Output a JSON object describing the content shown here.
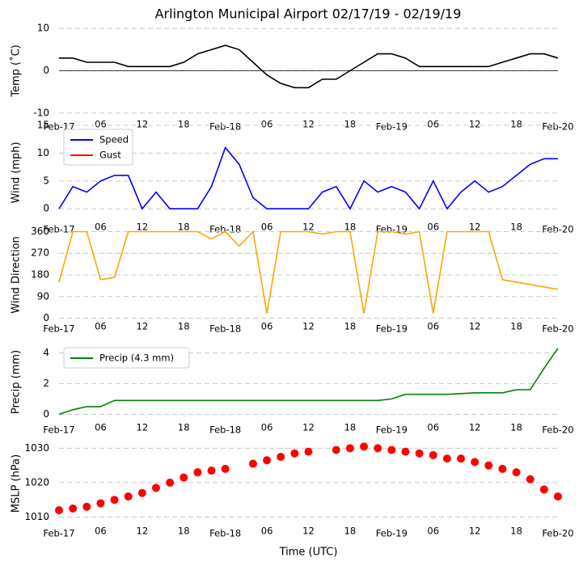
{
  "chart_data": [
    {
      "type": "line",
      "title": "Arlington Municipal Airport 02/17/19 - 02/19/19",
      "ylabel": "Temp (˚C)",
      "color": "#000000",
      "hline": 0,
      "x": [
        0,
        2,
        4,
        6,
        8,
        10,
        12,
        14,
        16,
        18,
        20,
        22,
        24,
        26,
        28,
        30,
        32,
        34,
        36,
        38,
        40,
        42,
        44,
        46,
        48,
        50,
        52,
        54,
        56,
        58,
        60,
        62,
        64,
        66,
        68,
        70,
        72
      ],
      "values": [
        3,
        3,
        2,
        2,
        2,
        1,
        1,
        1,
        1,
        2,
        4,
        5,
        6,
        5,
        2,
        -1,
        -3,
        -4,
        -4,
        -2,
        -2,
        0,
        2,
        4,
        4,
        3,
        1,
        1,
        1,
        1,
        1,
        1,
        2,
        3,
        4,
        4,
        3
      ],
      "xlim": [
        0,
        72
      ],
      "ylim": [
        -11,
        11
      ],
      "yticks": [
        -10,
        0,
        10
      ],
      "xticks": [
        {
          "value": 0,
          "label": "Feb-17"
        },
        {
          "value": 6,
          "label": "06"
        },
        12,
        18,
        {
          "value": 24,
          "label": "Feb-18"
        },
        {
          "value": 30,
          "label": "06"
        },
        {
          "value": 36,
          "label": "12"
        },
        {
          "value": 42,
          "label": "18"
        },
        {
          "value": 48,
          "label": "Feb-19"
        },
        {
          "value": 54,
          "label": "06"
        },
        {
          "value": 60,
          "label": "12"
        },
        {
          "value": 66,
          "label": "18"
        },
        {
          "value": 72,
          "label": "Feb-20"
        }
      ],
      "grid": true
    },
    {
      "type": "line",
      "ylabel": "Wind (mph)",
      "legend": "upper left",
      "x": [
        0,
        2,
        4,
        6,
        8,
        10,
        12,
        14,
        16,
        18,
        20,
        22,
        24,
        26,
        28,
        30,
        32,
        34,
        36,
        38,
        40,
        42,
        44,
        46,
        48,
        50,
        52,
        54,
        56,
        58,
        60,
        62,
        64,
        66,
        68,
        70,
        72
      ],
      "series": [
        {
          "name": "Speed",
          "color": "#0000ff",
          "values": [
            0,
            4,
            3,
            5,
            6,
            6,
            0,
            3,
            0,
            0,
            0,
            4,
            11,
            8,
            2,
            0,
            0,
            0,
            0,
            3,
            4,
            0,
            5,
            3,
            4,
            3,
            0,
            5,
            0,
            3,
            5,
            3,
            4,
            6,
            8,
            9,
            9
          ]
        },
        {
          "name": "Gust",
          "color": "#ff0000",
          "values": [
            null,
            null,
            null,
            null,
            null,
            null,
            null,
            null,
            null,
            null,
            null,
            null,
            null,
            null,
            null,
            null,
            null,
            null,
            null,
            null,
            null,
            null,
            null,
            null,
            null,
            null,
            null,
            null,
            null,
            null,
            null,
            null,
            null,
            null,
            null,
            null,
            null
          ]
        }
      ],
      "xlim": [
        0,
        72
      ],
      "ylim": [
        -2,
        15
      ],
      "yticks": [
        0,
        5,
        10,
        15
      ],
      "xticks": [
        {
          "value": 0,
          "label": "Feb-17"
        },
        {
          "value": 6,
          "label": "06"
        },
        12,
        18,
        {
          "value": 24,
          "label": "Feb-18"
        },
        {
          "value": 30,
          "label": "06"
        },
        {
          "value": 36,
          "label": "12"
        },
        {
          "value": 42,
          "label": "18"
        },
        {
          "value": 48,
          "label": "Feb-19"
        },
        {
          "value": 54,
          "label": "06"
        },
        {
          "value": 60,
          "label": "12"
        },
        {
          "value": 66,
          "label": "18"
        },
        {
          "value": 72,
          "label": "Feb-20"
        }
      ],
      "grid": true
    },
    {
      "type": "line",
      "ylabel": "Wind Direction",
      "color": "#ffa500",
      "x": [
        0,
        2,
        4,
        6,
        8,
        10,
        12,
        14,
        16,
        18,
        20,
        22,
        24,
        26,
        28,
        30,
        32,
        34,
        36,
        38,
        40,
        42,
        44,
        46,
        48,
        50,
        52,
        54,
        56,
        58,
        60,
        62,
        64,
        66,
        68,
        70,
        72
      ],
      "values": [
        150,
        360,
        360,
        160,
        170,
        360,
        360,
        360,
        360,
        360,
        360,
        330,
        360,
        300,
        360,
        20,
        360,
        360,
        360,
        350,
        360,
        360,
        20,
        360,
        360,
        350,
        360,
        20,
        360,
        360,
        360,
        360,
        160,
        150,
        140,
        130,
        120
      ],
      "xlim": [
        0,
        72
      ],
      "ylim": [
        -5,
        365
      ],
      "yticks": [
        0,
        90,
        180,
        270,
        360
      ],
      "xticks": [
        {
          "value": 0,
          "label": "Feb-17"
        },
        {
          "value": 6,
          "label": "06"
        },
        12,
        18,
        {
          "value": 24,
          "label": "Feb-18"
        },
        {
          "value": 30,
          "label": "06"
        },
        {
          "value": 36,
          "label": "12"
        },
        {
          "value": 42,
          "label": "18"
        },
        {
          "value": 48,
          "label": "Feb-19"
        },
        {
          "value": 54,
          "label": "06"
        },
        {
          "value": 60,
          "label": "12"
        },
        {
          "value": 66,
          "label": "18"
        },
        {
          "value": 72,
          "label": "Feb-20"
        }
      ],
      "grid": true
    },
    {
      "type": "line",
      "ylabel": "Precip (mm)",
      "legend": "upper left",
      "x": [
        0,
        2,
        4,
        6,
        8,
        10,
        12,
        14,
        16,
        18,
        20,
        22,
        24,
        26,
        28,
        30,
        32,
        34,
        36,
        38,
        40,
        42,
        44,
        46,
        48,
        50,
        52,
        54,
        56,
        58,
        60,
        62,
        64,
        66,
        68,
        70,
        72
      ],
      "series": [
        {
          "name": "Precip (4.3 mm)",
          "color": "#008000",
          "values": [
            0,
            0.3,
            0.5,
            0.5,
            0.9,
            0.9,
            0.9,
            0.9,
            0.9,
            0.9,
            0.9,
            0.9,
            0.9,
            0.9,
            0.9,
            0.9,
            0.9,
            0.9,
            0.9,
            0.9,
            0.9,
            0.9,
            0.9,
            0.9,
            1.0,
            1.3,
            1.3,
            1.3,
            1.3,
            1.35,
            1.4,
            1.4,
            1.4,
            1.6,
            1.6,
            3.0,
            4.3
          ]
        }
      ],
      "xlim": [
        0,
        72
      ],
      "ylim": [
        -0.4,
        4.6
      ],
      "yticks": [
        0,
        2,
        4
      ],
      "xticks": [
        {
          "value": 0,
          "label": "Feb-17"
        },
        {
          "value": 6,
          "label": "06"
        },
        12,
        18,
        {
          "value": 24,
          "label": "Feb-18"
        },
        {
          "value": 30,
          "label": "06"
        },
        {
          "value": 36,
          "label": "12"
        },
        {
          "value": 42,
          "label": "18"
        },
        {
          "value": 48,
          "label": "Feb-19"
        },
        {
          "value": 54,
          "label": "06"
        },
        {
          "value": 60,
          "label": "12"
        },
        {
          "value": 66,
          "label": "18"
        },
        {
          "value": 72,
          "label": "Feb-20"
        }
      ],
      "grid": true
    },
    {
      "type": "scatter",
      "ylabel": "MSLP (hPa)",
      "xlabel": "Time (UTC)",
      "color": "#ff0000",
      "x": [
        0,
        2,
        4,
        6,
        8,
        10,
        12,
        14,
        16,
        18,
        20,
        22,
        24,
        26,
        28,
        30,
        32,
        34,
        36,
        38,
        40,
        42,
        44,
        46,
        48,
        50,
        52,
        54,
        56,
        58,
        60,
        62,
        64,
        66,
        68,
        70,
        72
      ],
      "values": [
        1012,
        1012.5,
        1013,
        1014,
        1015,
        1016,
        1017,
        1018.5,
        1020,
        1021.5,
        1023,
        1023.5,
        1024,
        null,
        1025.5,
        1026.5,
        1027.5,
        1028.5,
        1029,
        null,
        1029.5,
        1030,
        1030.5,
        1030,
        1029.5,
        1029,
        1028.5,
        1028,
        1027,
        1027,
        1026,
        1025,
        1024,
        1023,
        1021,
        1018,
        1016
      ],
      "xlim": [
        0,
        72
      ],
      "ylim": [
        1008,
        1031.5
      ],
      "yticks": [
        1010,
        1020,
        1030
      ],
      "xticks": [
        {
          "value": 0,
          "label": "Feb-17"
        },
        {
          "value": 6,
          "label": "06"
        },
        12,
        18,
        {
          "value": 24,
          "label": "Feb-18"
        },
        {
          "value": 30,
          "label": "06"
        },
        {
          "value": 36,
          "label": "12"
        },
        {
          "value": 42,
          "label": "18"
        },
        {
          "value": 48,
          "label": "Feb-19"
        },
        {
          "value": 54,
          "label": "06"
        },
        {
          "value": 60,
          "label": "12"
        },
        {
          "value": 66,
          "label": "18"
        },
        {
          "value": 72,
          "label": "Feb-20"
        }
      ],
      "grid": true
    }
  ]
}
